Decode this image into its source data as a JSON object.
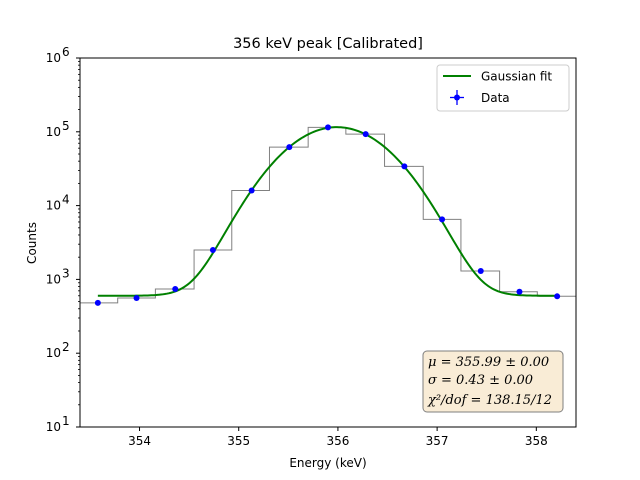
{
  "chart_data": {
    "type": "line",
    "title": "356 keV peak [Calibrated]",
    "xlabel": "Energy (keV)",
    "ylabel": "Counts",
    "xlim": [
      353.4,
      358.4
    ],
    "ylim": [
      10,
      1000000
    ],
    "yscale": "log",
    "x_ticks": [
      354,
      355,
      356,
      357,
      358
    ],
    "y_ticks": [
      {
        "value": 10,
        "base": "10",
        "exp": "1"
      },
      {
        "value": 100,
        "base": "10",
        "exp": "2"
      },
      {
        "value": 1000,
        "base": "10",
        "exp": "3"
      },
      {
        "value": 10000,
        "base": "10",
        "exp": "4"
      },
      {
        "value": 100000,
        "base": "10",
        "exp": "5"
      },
      {
        "value": 1000000,
        "base": "10",
        "exp": "6"
      }
    ],
    "grid": false,
    "legend_position": "top-right",
    "histogram": {
      "name": "",
      "color": "#808080",
      "bin_edges": [
        353.4,
        353.78,
        354.16,
        354.55,
        354.93,
        355.31,
        355.7,
        356.08,
        356.47,
        356.86,
        357.24,
        357.63,
        358.01,
        358.4
      ],
      "counts": [
        480,
        560,
        740,
        2500,
        16000,
        62000,
        115000,
        93000,
        34000,
        6500,
        1300,
        680,
        590
      ]
    },
    "series": [
      {
        "name": "Data",
        "kind": "points",
        "color": "#0000ff",
        "x": [
          353.58,
          353.97,
          354.36,
          354.74,
          355.13,
          355.51,
          355.9,
          356.28,
          356.67,
          357.05,
          357.44,
          357.83,
          358.21
        ],
        "y": [
          480,
          560,
          740,
          2500,
          16000,
          62000,
          115000,
          93000,
          34000,
          6500,
          1300,
          680,
          590
        ]
      },
      {
        "name": "Gaussian fit",
        "kind": "line",
        "color": "#008000",
        "model": {
          "amplitude": 115000,
          "mu": 355.99,
          "sigma": 0.43,
          "background": 600
        },
        "x_range": [
          353.58,
          358.21
        ]
      }
    ],
    "annotations": [
      {
        "kind": "stats_box",
        "lines": [
          "μ = 355.99 ± 0.00",
          "σ = 0.43 ± 0.00",
          "χ²/dof = 138.15/12"
        ]
      }
    ]
  },
  "legend": {
    "fit_label": "Gaussian fit",
    "data_label": "Data"
  },
  "stats": {
    "mu_line": "μ = 355.99 ± 0.00",
    "sigma_line": "σ = 0.43 ± 0.00",
    "chi_line": "χ²/dof = 138.15/12"
  },
  "colors": {
    "fit": "#008000",
    "data": "#0000ff",
    "histogram": "#808080",
    "stats_box_fill": "#f9ecd6"
  }
}
